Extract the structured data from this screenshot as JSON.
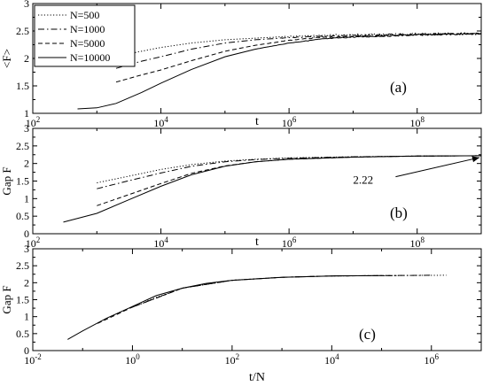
{
  "figure": {
    "background": "#ffffff",
    "ink": "#000000"
  },
  "chart_data": [
    {
      "id": "a",
      "type": "line",
      "panel_label": "(a)",
      "xlabel": "t",
      "ylabel": "<F>",
      "xscale": "log",
      "xlim": [
        100,
        1000000000
      ],
      "ylim": [
        1,
        3
      ],
      "xticks": [
        {
          "value": 100,
          "base": "10",
          "exp": "2"
        },
        {
          "value": 10000,
          "base": "10",
          "exp": "4"
        },
        {
          "value": 1000000,
          "base": "10",
          "exp": "6"
        },
        {
          "value": 100000000,
          "base": "10",
          "exp": "8"
        }
      ],
      "yticks": [
        "1",
        "1.5",
        "2",
        "2.5",
        "3"
      ],
      "legend": {
        "placement": "top-left",
        "entries": [
          {
            "series": 0,
            "label": "N=500"
          },
          {
            "series": 1,
            "label": "N=1000"
          },
          {
            "series": 2,
            "label": "N=5000"
          },
          {
            "series": 3,
            "label": "N=10000"
          }
        ]
      },
      "series": [
        {
          "name": "N=500",
          "style": "dotted",
          "noise": 0.022,
          "x": [
            1000,
            3000,
            10000,
            30000,
            100000,
            300000,
            1000000,
            3000000,
            10000000,
            100000000,
            1000000000
          ],
          "y": [
            1.95,
            2.08,
            2.2,
            2.28,
            2.34,
            2.37,
            2.4,
            2.42,
            2.43,
            2.44,
            2.45
          ]
        },
        {
          "name": "N=1000",
          "style": "dashdot",
          "noise": 0.018,
          "x": [
            2000,
            5000,
            10000,
            30000,
            100000,
            300000,
            1000000,
            3000000,
            10000000,
            100000000,
            1000000000
          ],
          "y": [
            1.82,
            1.95,
            2.03,
            2.17,
            2.28,
            2.34,
            2.38,
            2.4,
            2.42,
            2.44,
            2.45
          ]
        },
        {
          "name": "N=5000",
          "style": "dashed",
          "noise": 0.015,
          "x": [
            2000,
            5000,
            10000,
            30000,
            100000,
            300000,
            1000000,
            3000000,
            10000000,
            100000000,
            1000000000
          ],
          "y": [
            1.57,
            1.7,
            1.79,
            1.96,
            2.13,
            2.24,
            2.33,
            2.38,
            2.4,
            2.43,
            2.45
          ]
        },
        {
          "name": "N=10000",
          "style": "solid",
          "noise": 0.012,
          "x": [
            500,
            1000,
            2000,
            5000,
            10000,
            30000,
            100000,
            300000,
            1000000,
            3000000,
            10000000,
            100000000,
            1000000000
          ],
          "y": [
            1.08,
            1.1,
            1.18,
            1.38,
            1.55,
            1.8,
            2.03,
            2.17,
            2.28,
            2.35,
            2.39,
            2.43,
            2.45
          ]
        }
      ]
    },
    {
      "id": "b",
      "type": "line",
      "panel_label": "(b)",
      "xlabel": "t",
      "ylabel": "Gap F",
      "xscale": "log",
      "xlim": [
        100,
        1000000000
      ],
      "ylim": [
        0,
        3
      ],
      "xticks": [
        {
          "value": 100,
          "base": "10",
          "exp": "2"
        },
        {
          "value": 10000,
          "base": "10",
          "exp": "4"
        },
        {
          "value": 1000000,
          "base": "10",
          "exp": "6"
        },
        {
          "value": 100000000,
          "base": "10",
          "exp": "8"
        }
      ],
      "yticks": [
        "0",
        "0.5",
        "1",
        "1.5",
        "2",
        "2.5",
        "3"
      ],
      "annotation": {
        "text": "2.22",
        "x": 1000000000,
        "y": 2.22,
        "text_x": 10000000,
        "text_y": 1.42
      },
      "series": [
        {
          "name": "N=500",
          "style": "dotted",
          "noise": 0,
          "x": [
            1000,
            3000,
            10000,
            30000,
            100000,
            300000,
            1000000,
            10000000,
            100000000,
            1000000000
          ],
          "y": [
            1.45,
            1.63,
            1.83,
            1.97,
            2.07,
            2.12,
            2.16,
            2.19,
            2.21,
            2.22
          ]
        },
        {
          "name": "N=1000",
          "style": "dashdot",
          "noise": 0,
          "x": [
            1000,
            3000,
            10000,
            30000,
            100000,
            300000,
            1000000,
            10000000,
            100000000,
            1000000000
          ],
          "y": [
            1.28,
            1.5,
            1.73,
            1.92,
            2.05,
            2.11,
            2.15,
            2.19,
            2.21,
            2.22
          ]
        },
        {
          "name": "N=5000",
          "style": "dashed",
          "noise": 0,
          "x": [
            1000,
            3000,
            10000,
            30000,
            100000,
            300000,
            1000000,
            10000000,
            100000000,
            1000000000
          ],
          "y": [
            0.8,
            1.1,
            1.43,
            1.72,
            1.93,
            2.05,
            2.12,
            2.18,
            2.21,
            2.22
          ]
        },
        {
          "name": "N=10000",
          "style": "solid",
          "noise": 0,
          "x": [
            300,
            1000,
            3000,
            10000,
            30000,
            100000,
            300000,
            1000000,
            10000000,
            100000000,
            1000000000
          ],
          "y": [
            0.33,
            0.58,
            0.95,
            1.35,
            1.68,
            1.92,
            2.05,
            2.12,
            2.18,
            2.21,
            2.22
          ]
        }
      ]
    },
    {
      "id": "c",
      "type": "line",
      "panel_label": "(c)",
      "xlabel": "t/N",
      "ylabel": "Gap F",
      "xscale": "log",
      "xlim": [
        0.01,
        10000000
      ],
      "ylim": [
        0,
        3
      ],
      "xticks": [
        {
          "value": 0.01,
          "base": "10",
          "exp": "-2"
        },
        {
          "value": 1,
          "base": "10",
          "exp": "0"
        },
        {
          "value": 100,
          "base": "10",
          "exp": "2"
        },
        {
          "value": 10000,
          "base": "10",
          "exp": "4"
        },
        {
          "value": 1000000,
          "base": "10",
          "exp": "6"
        }
      ],
      "yticks": [
        "0",
        "0.5",
        "1",
        "1.5",
        "2",
        "2.5",
        "3"
      ],
      "series": [
        {
          "name": "N=500",
          "style": "dotted",
          "noise": 0,
          "x": [
            2,
            10,
            100,
            1000,
            10000,
            100000,
            2000000
          ],
          "y": [
            1.47,
            1.84,
            2.07,
            2.16,
            2.2,
            2.21,
            2.22
          ]
        },
        {
          "name": "N=1000",
          "style": "dashdot",
          "noise": 0,
          "x": [
            1,
            10,
            100,
            1000,
            10000,
            100000,
            1000000
          ],
          "y": [
            1.28,
            1.84,
            2.07,
            2.16,
            2.2,
            2.21,
            2.22
          ]
        },
        {
          "name": "N=5000",
          "style": "dashed",
          "noise": 0,
          "x": [
            0.2,
            1,
            10,
            100,
            1000,
            10000,
            200000
          ],
          "y": [
            0.8,
            1.28,
            1.84,
            2.07,
            2.16,
            2.2,
            2.21
          ]
        },
        {
          "name": "N=10000",
          "style": "solid",
          "noise": 0,
          "x": [
            0.05,
            0.1,
            0.3,
            1,
            3,
            10,
            30,
            100,
            1000,
            10000,
            100000
          ],
          "y": [
            0.33,
            0.58,
            0.95,
            1.3,
            1.62,
            1.84,
            1.98,
            2.07,
            2.16,
            2.2,
            2.21
          ]
        }
      ]
    }
  ]
}
